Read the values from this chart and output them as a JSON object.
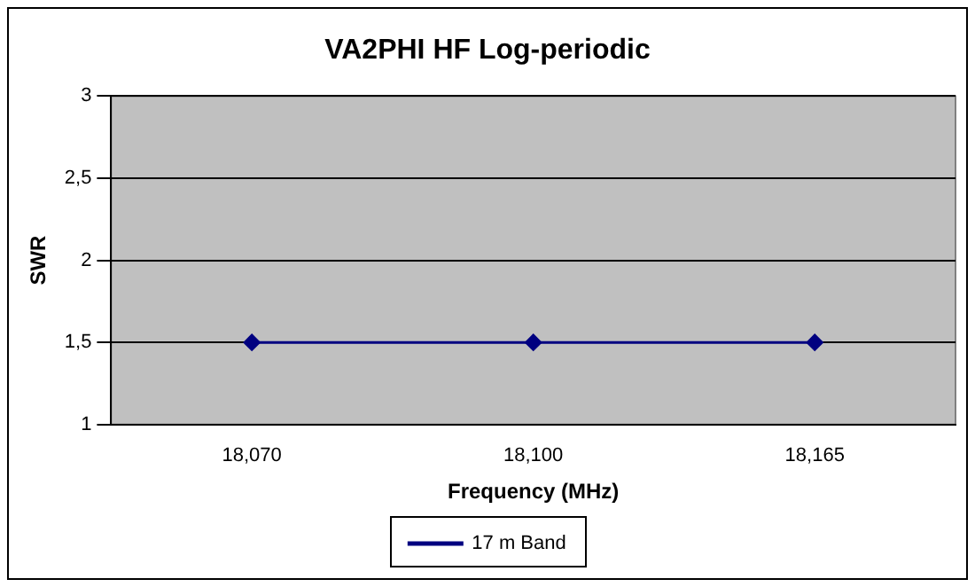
{
  "chart_data": {
    "type": "line",
    "title": "VA2PHI HF Log-periodic",
    "xlabel": "Frequency (MHz)",
    "ylabel": "SWR",
    "categories": [
      "18,070",
      "18,100",
      "18,165"
    ],
    "series": [
      {
        "name": "17 m Band",
        "color": "#000080",
        "values": [
          1.5,
          1.5,
          1.5
        ]
      }
    ],
    "ylim": [
      1,
      3
    ],
    "yticks": [
      1,
      {
        "value": 1.5,
        "label": "1,5"
      },
      2,
      {
        "value": 2.5,
        "label": "2,5"
      },
      3
    ],
    "grid": "y",
    "legend": "bottom",
    "marker": "diamond",
    "line_style": "solid"
  }
}
